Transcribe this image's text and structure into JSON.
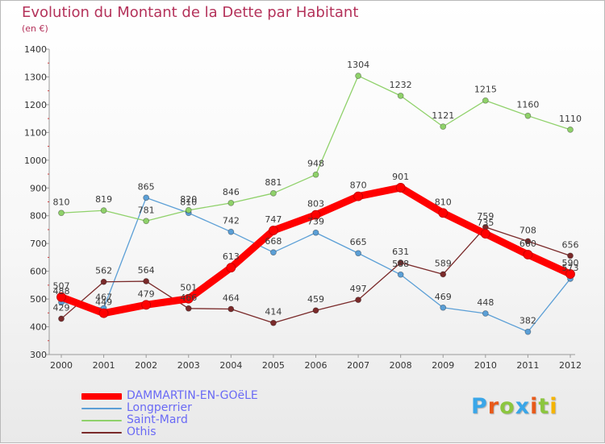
{
  "title": "Evolution du Montant de la Dette par Habitant",
  "subtitle": "(en €)",
  "logo": {
    "text": "Proxiti",
    "letter_colors": [
      "#3aa6e8",
      "#e85a1a",
      "#8cc63f",
      "#3aa6e8",
      "#e85a1a",
      "#8cc63f",
      "#f5b400"
    ]
  },
  "chart_data": {
    "type": "line",
    "categories": [
      "2000",
      "2001",
      "2002",
      "2003",
      "2004",
      "2005",
      "2006",
      "2007",
      "2008",
      "2009",
      "2010",
      "2011",
      "2012"
    ],
    "ylim": [
      300,
      1400
    ],
    "yticks": [
      300,
      400,
      500,
      600,
      700,
      800,
      900,
      1000,
      1100,
      1200,
      1300,
      1400
    ],
    "grid": false,
    "legend_position": "bottom-left",
    "series": [
      {
        "name": "Longperrier",
        "color": "#5b9fd6",
        "emphasis": false,
        "values": [
          488,
          467,
          865,
          810,
          742,
          668,
          739,
          665,
          588,
          469,
          448,
          382,
          573
        ],
        "labels": [
          "488",
          "467",
          "865",
          "810",
          "742",
          "668",
          "739",
          "665",
          "588",
          "469",
          "448",
          "382",
          "573"
        ]
      },
      {
        "name": "Saint-Mard",
        "color": "#8fd16a",
        "emphasis": false,
        "values": [
          810,
          819,
          781,
          820,
          846,
          881,
          948,
          1304,
          1232,
          1121,
          1215,
          1160,
          1110
        ],
        "labels": [
          "810",
          "819",
          "781",
          "820",
          "846",
          "881",
          "948",
          "1304",
          "1232",
          "1121",
          "1215",
          "1160",
          "1110"
        ]
      },
      {
        "name": "Othis",
        "color": "#7a2a2a",
        "emphasis": false,
        "values": [
          429,
          562,
          564,
          466,
          464,
          414,
          459,
          497,
          631,
          589,
          759,
          708,
          656
        ],
        "labels": [
          "429",
          "562",
          "564",
          "466",
          "464",
          "414",
          "459",
          "497",
          "631",
          "589",
          "759",
          "708",
          "656"
        ]
      },
      {
        "name": "DAMMARTIN-EN-GOëLE",
        "color": "#ff0000",
        "emphasis": true,
        "values": [
          507,
          449,
          479,
          501,
          613,
          747,
          803,
          870,
          901,
          810,
          735,
          660,
          590
        ],
        "labels": [
          "507",
          "449",
          "479",
          "501",
          "613",
          "747",
          "803",
          "870",
          "901",
          "810",
          "735",
          "660",
          "590"
        ]
      }
    ],
    "legend_order": [
      "DAMMARTIN-EN-GOëLE",
      "Longperrier",
      "Saint-Mard",
      "Othis"
    ]
  }
}
